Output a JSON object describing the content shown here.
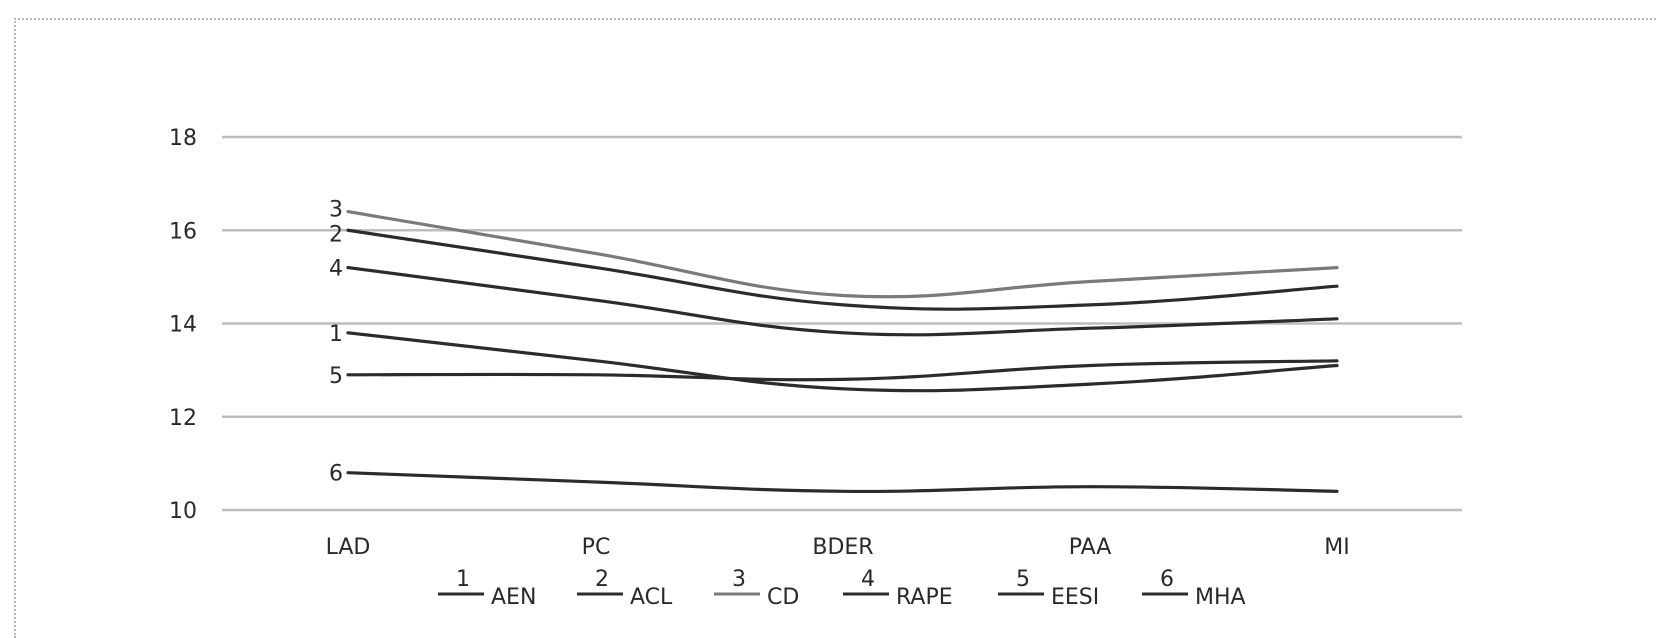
{
  "chart_data": {
    "type": "line",
    "categories": [
      "LAD",
      "PC",
      "BDER",
      "PAA",
      "MI"
    ],
    "ylim": [
      10,
      18
    ],
    "yticks": [
      10,
      12,
      14,
      16,
      18
    ],
    "grid": true,
    "legend_position": "bottom",
    "series": [
      {
        "marker": "1",
        "name": "AEN",
        "color": "#2b2b2b",
        "values": [
          13.8,
          13.2,
          12.6,
          12.7,
          13.1
        ]
      },
      {
        "marker": "2",
        "name": "ACL",
        "color": "#2b2b2b",
        "values": [
          16.0,
          15.2,
          14.4,
          14.4,
          14.8
        ]
      },
      {
        "marker": "3",
        "name": "CD",
        "color": "#7a7a7a",
        "values": [
          16.4,
          15.5,
          14.6,
          14.9,
          15.2
        ]
      },
      {
        "marker": "4",
        "name": "RAPE",
        "color": "#2b2b2b",
        "values": [
          15.2,
          14.5,
          13.8,
          13.9,
          14.1
        ]
      },
      {
        "marker": "5",
        "name": "EESI",
        "color": "#2b2b2b",
        "values": [
          12.9,
          12.9,
          12.8,
          13.1,
          13.2
        ]
      },
      {
        "marker": "6",
        "name": "MHA",
        "color": "#2b2b2b",
        "values": [
          10.8,
          10.6,
          10.4,
          10.5,
          10.4
        ]
      }
    ]
  }
}
